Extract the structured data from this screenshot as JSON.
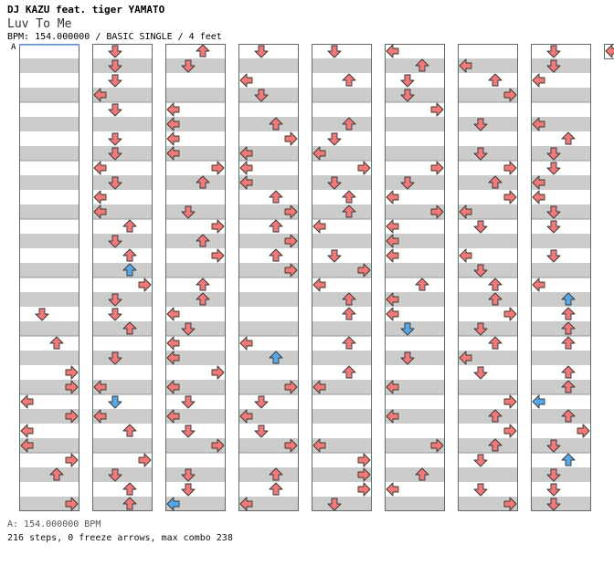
{
  "header": {
    "artist": "DJ KAZU feat. tiger YAMATO",
    "song_title": "Luv To Me",
    "info": "BPM: 154.000000 / BASIC SINGLE / 4 feet",
    "bpm_marker": "A"
  },
  "footer": {
    "bpm_line": "A: 154.000000 BPM",
    "steps_line": "216 steps, 0 freeze arrows, max combo 238"
  },
  "colors": {
    "normal_arrow": "#f07a7a",
    "blue_arrow": "#58a8e8",
    "pink_arrow": "#e88ae0",
    "stripe": "#cccccc"
  },
  "notes": [
    [
      1,
      1,
      "R"
    ],
    [
      1,
      3,
      "U"
    ],
    [
      1,
      4,
      "R"
    ],
    [
      1,
      7,
      "R"
    ],
    [
      2,
      4,
      "D"
    ],
    [
      2,
      5,
      "L"
    ],
    [
      2,
      7,
      "L"
    ],
    [
      2,
      8,
      "R"
    ],
    [
      3,
      1,
      "D"
    ],
    [
      3,
      4,
      "L"
    ],
    [
      3,
      5,
      "R"
    ],
    [
      3,
      7,
      "L"
    ],
    [
      4,
      1,
      "D"
    ],
    [
      4,
      5,
      "R"
    ],
    [
      4,
      7,
      "R"
    ],
    [
      4,
      8,
      "D"
    ],
    [
      5,
      1,
      "U"
    ],
    [
      5,
      3,
      "R"
    ],
    [
      5,
      4,
      "R"
    ],
    [
      5,
      6,
      "U"
    ],
    [
      5,
      7,
      "L"
    ],
    [
      6,
      1,
      "R"
    ],
    [
      6,
      4,
      "D"
    ],
    [
      6,
      5,
      "D"
    ],
    [
      6,
      6,
      "D"
    ],
    [
      6,
      7,
      "D"
    ],
    [
      7,
      0,
      "L"
    ],
    [
      7,
      1,
      "U"
    ],
    [
      7,
      2,
      "R"
    ],
    [
      7,
      3,
      "R"
    ],
    [
      7,
      4,
      "U"
    ],
    [
      7,
      5,
      "L"
    ],
    [
      7,
      6,
      "D"
    ],
    [
      7,
      7,
      "R"
    ],
    [
      8,
      0,
      "L"
    ],
    [
      8,
      1,
      "L"
    ],
    [
      8,
      2,
      "U"
    ],
    [
      8,
      5,
      "D"
    ],
    [
      8,
      7,
      "L"
    ]
  ]
}
